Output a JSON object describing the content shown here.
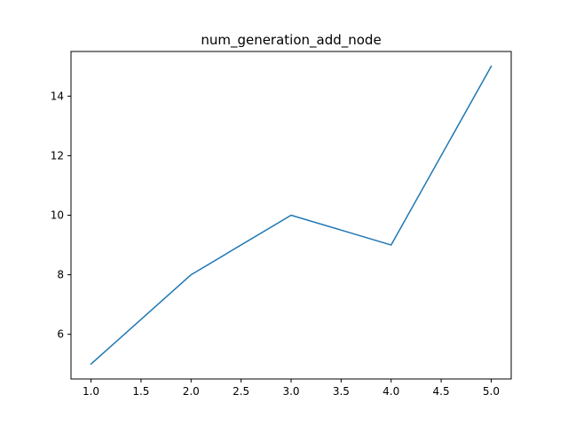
{
  "chart_data": {
    "type": "line",
    "title": "num_generation_add_node",
    "xlabel": "",
    "ylabel": "",
    "x": [
      1.0,
      2.0,
      3.0,
      4.0,
      5.0
    ],
    "series": [
      {
        "values": [
          5,
          8,
          10,
          9,
          15
        ],
        "color": "#1f77b4"
      }
    ],
    "xlim": [
      0.8,
      5.2
    ],
    "ylim": [
      4.5,
      15.5
    ],
    "xticks": [
      1.0,
      1.5,
      2.0,
      2.5,
      3.0,
      3.5,
      4.0,
      4.5,
      5.0
    ],
    "xtick_labels": [
      "1.0",
      "1.5",
      "2.0",
      "2.5",
      "3.0",
      "3.5",
      "4.0",
      "4.5",
      "5.0"
    ],
    "yticks": [
      6,
      8,
      10,
      12,
      14
    ],
    "ytick_labels": [
      "6",
      "8",
      "10",
      "12",
      "14"
    ],
    "grid": false,
    "legend": "none"
  }
}
